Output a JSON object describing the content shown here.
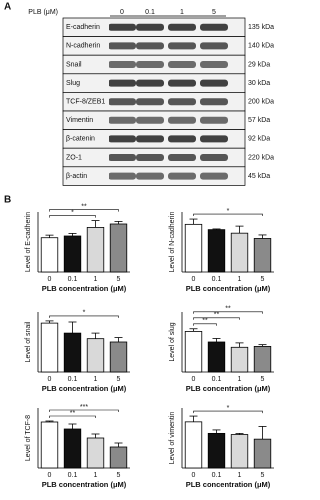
{
  "blot": {
    "panel_label": "A",
    "treatment_label": "PLB (μM)",
    "lanes": [
      "0",
      "0.1",
      "1",
      "5"
    ],
    "rows": [
      {
        "protein": "E-cadherin",
        "size": "135 kDa"
      },
      {
        "protein": "N-cadherin",
        "size": "140 kDa"
      },
      {
        "protein": "Snail",
        "size": "29 kDa"
      },
      {
        "protein": "Slug",
        "size": "30 kDa"
      },
      {
        "protein": "TCF-8/ZEB1",
        "size": "200 kDa"
      },
      {
        "protein": "Vimentin",
        "size": "57 kDa"
      },
      {
        "protein": "β-catenin",
        "size": "92 kDa"
      },
      {
        "protein": "ZO-1",
        "size": "220 kDa"
      },
      {
        "protein": "β-actin",
        "size": "45 kDa"
      }
    ]
  },
  "panel_b_label": "B",
  "chart_data": [
    {
      "type": "bar",
      "y_label": "Level of E-cadherin",
      "x_label": "PLB concentration (μM)",
      "categories": [
        "0",
        "0.1",
        "1",
        "5"
      ],
      "values": [
        2.0,
        2.1,
        2.6,
        2.8
      ],
      "errors": [
        0.15,
        0.15,
        0.4,
        0.15
      ],
      "ylim": [
        0,
        3.5
      ],
      "colors": [
        "#ffffff",
        "#111111",
        "#d9d9d9",
        "#8a8a8a"
      ],
      "significance": [
        {
          "text": "*",
          "from": 0,
          "to": 2
        },
        {
          "text": "**",
          "from": 0,
          "to": 3
        }
      ]
    },
    {
      "type": "bar",
      "y_label": "Level of N-cadherin",
      "x_label": "PLB concentration (μM)",
      "categories": [
        "0",
        "0.1",
        "1",
        "5"
      ],
      "values": [
        1.35,
        1.2,
        1.1,
        0.95
      ],
      "errors": [
        0.15,
        0.02,
        0.2,
        0.1
      ],
      "ylim": [
        0,
        1.7
      ],
      "colors": [
        "#ffffff",
        "#111111",
        "#d9d9d9",
        "#8a8a8a"
      ],
      "significance": [
        {
          "text": "*",
          "from": 0,
          "to": 3
        }
      ]
    },
    {
      "type": "bar",
      "y_label": "Level of snail",
      "x_label": "PLB concentration (μM)",
      "categories": [
        "0",
        "0.1",
        "1",
        "5"
      ],
      "values": [
        2.2,
        1.75,
        1.5,
        1.35
      ],
      "errors": [
        0.1,
        0.5,
        0.25,
        0.2
      ],
      "ylim": [
        0,
        2.7
      ],
      "colors": [
        "#ffffff",
        "#111111",
        "#d9d9d9",
        "#8a8a8a"
      ],
      "significance": [
        {
          "text": "*",
          "from": 0,
          "to": 3
        }
      ]
    },
    {
      "type": "bar",
      "y_label": "Level of slug",
      "x_label": "PLB concentration (μM)",
      "categories": [
        "0",
        "0.1",
        "1",
        "5"
      ],
      "values": [
        2.3,
        1.7,
        1.4,
        1.45
      ],
      "errors": [
        0.15,
        0.2,
        0.25,
        0.1
      ],
      "ylim": [
        0,
        3.4
      ],
      "colors": [
        "#ffffff",
        "#111111",
        "#d9d9d9",
        "#8a8a8a"
      ],
      "significance": [
        {
          "text": "**",
          "from": 0,
          "to": 1
        },
        {
          "text": "**",
          "from": 0,
          "to": 2
        },
        {
          "text": "**",
          "from": 0,
          "to": 3
        }
      ]
    },
    {
      "type": "bar",
      "y_label": "Level of TCF-8",
      "x_label": "PLB concentration (μM)",
      "categories": [
        "0",
        "0.1",
        "1",
        "5"
      ],
      "values": [
        2.3,
        1.95,
        1.5,
        1.05
      ],
      "errors": [
        0.05,
        0.25,
        0.2,
        0.2
      ],
      "ylim": [
        0,
        3.0
      ],
      "colors": [
        "#ffffff",
        "#111111",
        "#d9d9d9",
        "#8a8a8a"
      ],
      "significance": [
        {
          "text": "**",
          "from": 0,
          "to": 2
        },
        {
          "text": "***",
          "from": 0,
          "to": 3
        }
      ]
    },
    {
      "type": "bar",
      "y_label": "Level of vimentin",
      "x_label": "PLB concentration (μM)",
      "categories": [
        "0",
        "0.1",
        "1",
        "5"
      ],
      "values": [
        2.0,
        1.5,
        1.45,
        1.25
      ],
      "errors": [
        0.25,
        0.15,
        0.05,
        0.55
      ],
      "ylim": [
        0,
        2.6
      ],
      "colors": [
        "#ffffff",
        "#111111",
        "#d9d9d9",
        "#8a8a8a"
      ],
      "significance": [
        {
          "text": "*",
          "from": 0,
          "to": 3
        }
      ]
    }
  ]
}
